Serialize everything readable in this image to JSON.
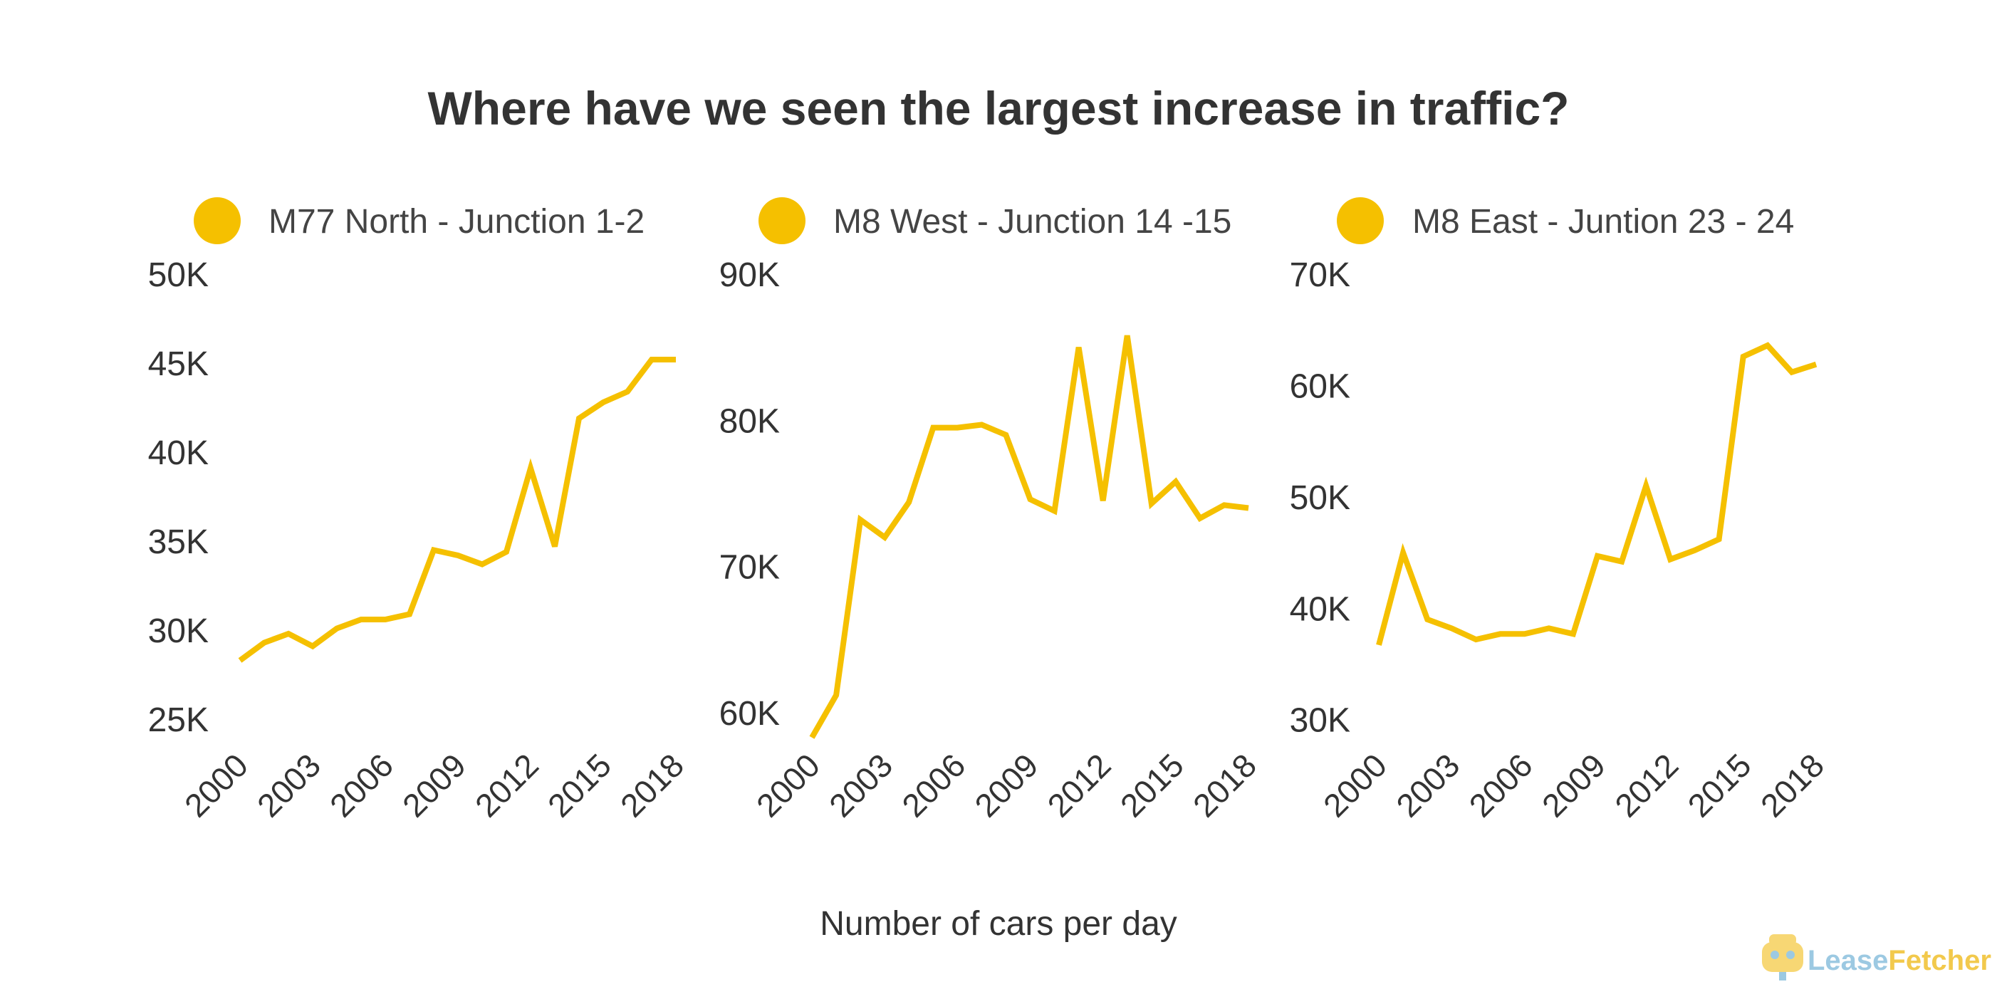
{
  "title": "Where have we seen the largest increase in traffic?",
  "xlabel": "Number of cars per day",
  "brand": {
    "part1": "Lease",
    "part2": "Fetcher"
  },
  "colors": {
    "line": "#F5C000",
    "text": "#333333"
  },
  "chart_data": [
    {
      "type": "line",
      "legend": "M77 North - Junction 1-2",
      "x": [
        2000,
        2001,
        2002,
        2003,
        2004,
        2005,
        2006,
        2007,
        2008,
        2009,
        2010,
        2011,
        2012,
        2013,
        2014,
        2015,
        2016,
        2017,
        2018
      ],
      "values": [
        28300,
        29300,
        29800,
        29100,
        30100,
        30600,
        30600,
        30900,
        34500,
        34200,
        33700,
        34400,
        39100,
        34700,
        41900,
        42800,
        43400,
        45200,
        45200
      ],
      "ylim": [
        25000,
        50000
      ],
      "yticks": [
        25000,
        30000,
        35000,
        40000,
        45000,
        50000
      ],
      "ytick_labels": [
        "25K",
        "30K",
        "35K",
        "40K",
        "45K",
        "50K"
      ],
      "xticks": [
        2000,
        2003,
        2006,
        2009,
        2012,
        2015,
        2018
      ],
      "xtick_labels": [
        "2000",
        "2003",
        "2006",
        "2009",
        "2012",
        "2015",
        "2018"
      ]
    },
    {
      "type": "line",
      "legend": "M8 West - Junction 14 -15",
      "x": [
        2000,
        2001,
        2002,
        2003,
        2004,
        2005,
        2006,
        2007,
        2008,
        2009,
        2010,
        2011,
        2012,
        2013,
        2014,
        2015,
        2016,
        2017,
        2018
      ],
      "values": [
        58300,
        61200,
        73200,
        72000,
        74400,
        79500,
        79500,
        79700,
        79000,
        74600,
        73800,
        85000,
        74500,
        85800,
        74300,
        75800,
        73300,
        74200,
        74000
      ],
      "ylim": [
        58000,
        90000
      ],
      "yticks": [
        60000,
        70000,
        80000,
        90000
      ],
      "ytick_labels": [
        "60K",
        "70K",
        "80K",
        "90K"
      ],
      "xticks": [
        2000,
        2003,
        2006,
        2009,
        2012,
        2015,
        2018
      ],
      "xtick_labels": [
        "2000",
        "2003",
        "2006",
        "2009",
        "2012",
        "2015",
        "2018"
      ]
    },
    {
      "type": "line",
      "legend": "M8 East - Juntion 23 - 24",
      "x": [
        2000,
        2001,
        2002,
        2003,
        2004,
        2005,
        2006,
        2007,
        2008,
        2009,
        2010,
        2011,
        2012,
        2013,
        2014,
        2015,
        2016,
        2017,
        2018
      ],
      "values": [
        36700,
        45000,
        39000,
        38200,
        37200,
        37700,
        37700,
        38200,
        37700,
        44700,
        44200,
        51000,
        44400,
        45200,
        46200,
        62600,
        63600,
        61200,
        61900
      ],
      "ylim": [
        28000,
        70000
      ],
      "yticks": [
        30000,
        40000,
        50000,
        60000,
        70000
      ],
      "ytick_labels": [
        "30K",
        "40K",
        "50K",
        "60K",
        "70K"
      ],
      "xticks": [
        2000,
        2003,
        2006,
        2009,
        2012,
        2015,
        2018
      ],
      "xtick_labels": [
        "2000",
        "2003",
        "2006",
        "2009",
        "2012",
        "2015",
        "2018"
      ]
    }
  ]
}
